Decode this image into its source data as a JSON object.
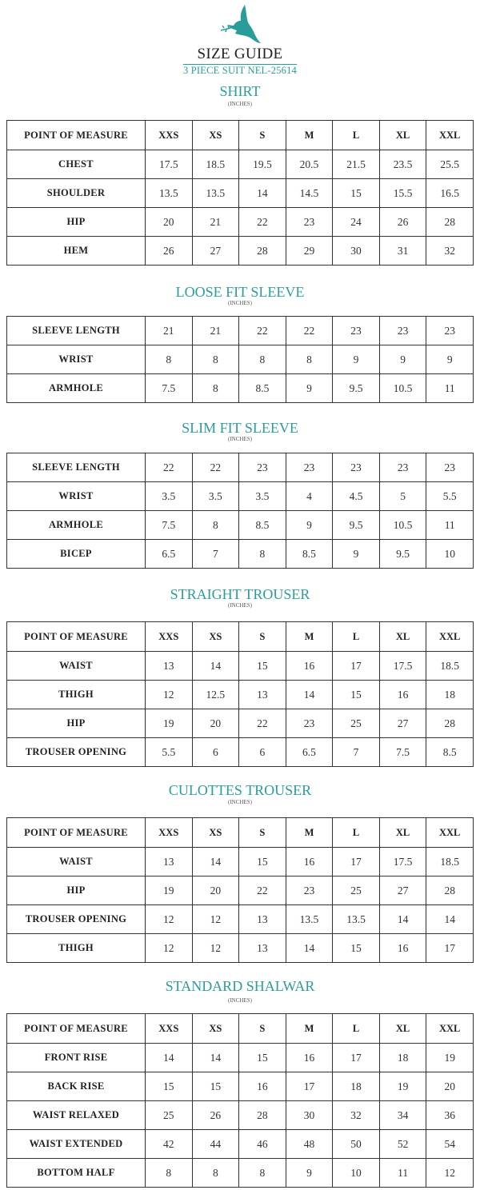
{
  "header": {
    "logo": "dove-logo",
    "title": "SIZE GUIDE",
    "subtitle": "3 PIECE SUIT NEL-25614",
    "accent_color": "#2a9d9a"
  },
  "sections": [
    {
      "title": "SHIRT",
      "unit": "(INCHES)",
      "header": [
        "POINT OF MEASURE",
        "XXS",
        "XS",
        "S",
        "M",
        "L",
        "XL",
        "XXL"
      ],
      "rows": [
        [
          "CHEST",
          "17.5",
          "18.5",
          "19.5",
          "20.5",
          "21.5",
          "23.5",
          "25.5"
        ],
        [
          "SHOULDER",
          "13.5",
          "13.5",
          "14",
          "14.5",
          "15",
          "15.5",
          "16.5"
        ],
        [
          "HIP",
          "20",
          "21",
          "22",
          "23",
          "24",
          "26",
          "28"
        ],
        [
          "HEM",
          "26",
          "27",
          "28",
          "29",
          "30",
          "31",
          "32"
        ]
      ]
    },
    {
      "title": "LOOSE FIT SLEEVE",
      "unit": "(INCHES)",
      "header": null,
      "rows": [
        [
          "SLEEVE LENGTH",
          "21",
          "21",
          "22",
          "22",
          "23",
          "23",
          "23"
        ],
        [
          "WRIST",
          "8",
          "8",
          "8",
          "8",
          "9",
          "9",
          "9"
        ],
        [
          "ARMHOLE",
          "7.5",
          "8",
          "8.5",
          "9",
          "9.5",
          "10.5",
          "11"
        ]
      ]
    },
    {
      "title": "SLIM FIT SLEEVE",
      "unit": "(INCHES)",
      "header": null,
      "rows": [
        [
          "SLEEVE LENGTH",
          "22",
          "22",
          "23",
          "23",
          "23",
          "23",
          "23"
        ],
        [
          "WRIST",
          "3.5",
          "3.5",
          "3.5",
          "4",
          "4.5",
          "5",
          "5.5"
        ],
        [
          "ARMHOLE",
          "7.5",
          "8",
          "8.5",
          "9",
          "9.5",
          "10.5",
          "11"
        ],
        [
          "BICEP",
          "6.5",
          "7",
          "8",
          "8.5",
          "9",
          "9.5",
          "10"
        ]
      ]
    },
    {
      "title": "STRAIGHT TROUSER",
      "unit": "(INCHES)",
      "header": [
        "POINT OF MEASURE",
        "XXS",
        "XS",
        "S",
        "M",
        "L",
        "XL",
        "XXL"
      ],
      "rows": [
        [
          "WAIST",
          "13",
          "14",
          "15",
          "16",
          "17",
          "17.5",
          "18.5"
        ],
        [
          "THIGH",
          "12",
          "12.5",
          "13",
          "14",
          "15",
          "16",
          "18"
        ],
        [
          "HIP",
          "19",
          "20",
          "22",
          "23",
          "25",
          "27",
          "28"
        ],
        [
          "TROUSER OPENING",
          "5.5",
          "6",
          "6",
          "6.5",
          "7",
          "7.5",
          "8.5"
        ]
      ]
    },
    {
      "title": "CULOTTES TROUSER",
      "unit": "(INCHES)",
      "header": [
        "POINT OF MEASURE",
        "XXS",
        "XS",
        "S",
        "M",
        "L",
        "XL",
        "XXL"
      ],
      "rows": [
        [
          "WAIST",
          "13",
          "14",
          "15",
          "16",
          "17",
          "17.5",
          "18.5"
        ],
        [
          "HIP",
          "19",
          "20",
          "22",
          "23",
          "25",
          "27",
          "28"
        ],
        [
          "TROUSER OPENING",
          "12",
          "12",
          "13",
          "13.5",
          "13.5",
          "14",
          "14"
        ],
        [
          "THIGH",
          "12",
          "12",
          "13",
          "14",
          "15",
          "16",
          "17"
        ]
      ]
    },
    {
      "title": "STANDARD SHALWAR",
      "unit": "(INCHES)",
      "header": [
        "POINT OF MEASURE",
        "XXS",
        "XS",
        "S",
        "M",
        "L",
        "XL",
        "XXL"
      ],
      "rows": [
        [
          "FRONT RISE",
          "14",
          "14",
          "15",
          "16",
          "17",
          "18",
          "19"
        ],
        [
          "BACK RISE",
          "15",
          "15",
          "16",
          "17",
          "18",
          "19",
          "20"
        ],
        [
          "WAIST RELAXED",
          "25",
          "26",
          "28",
          "30",
          "32",
          "34",
          "36"
        ],
        [
          "WAIST EXTENDED",
          "42",
          "44",
          "46",
          "48",
          "50",
          "52",
          "54"
        ],
        [
          "BOTTOM HALF",
          "8",
          "8",
          "8",
          "9",
          "10",
          "11",
          "12"
        ]
      ]
    }
  ]
}
